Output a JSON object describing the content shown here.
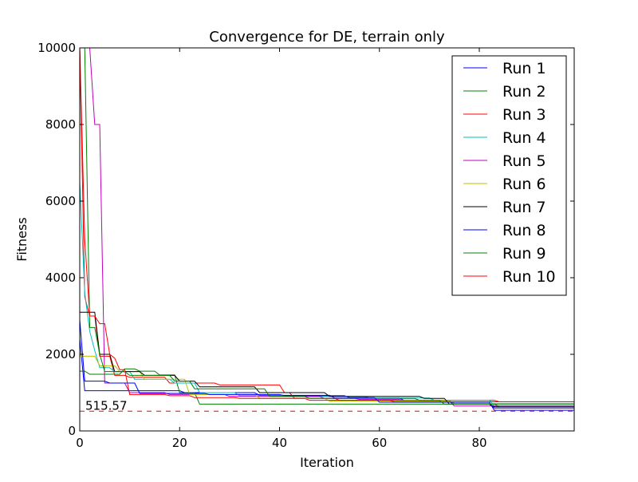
{
  "chart_data": {
    "type": "line",
    "title": "Convergence for DE, terrain only",
    "xlabel": "Iteration",
    "ylabel": "Fitness",
    "xlim": [
      0,
      99
    ],
    "ylim": [
      0,
      10000
    ],
    "xticks": [
      0,
      20,
      40,
      60,
      80
    ],
    "yticks": [
      0,
      2000,
      4000,
      6000,
      8000,
      10000
    ],
    "legend_position": "top-right",
    "reference_line": {
      "y": 515.57,
      "label": "515.57",
      "color": "#ff0000",
      "style": "dashed"
    },
    "series": [
      {
        "name": "Run 1",
        "color": "#0000ff",
        "points": [
          [
            0,
            2400
          ],
          [
            1,
            1050
          ],
          [
            20,
            1050
          ],
          [
            21,
            1000
          ],
          [
            35,
            1000
          ],
          [
            36,
            930
          ],
          [
            50,
            930
          ],
          [
            51,
            860
          ],
          [
            64,
            860
          ],
          [
            65,
            790
          ],
          [
            74,
            790
          ],
          [
            75,
            700
          ],
          [
            82,
            700
          ],
          [
            83,
            600
          ],
          [
            99,
            600
          ]
        ]
      },
      {
        "name": "Run 2",
        "color": "#008000",
        "points": [
          [
            0,
            1560
          ],
          [
            1,
            1560
          ],
          [
            2,
            1480
          ],
          [
            8,
            1480
          ],
          [
            9,
            1620
          ],
          [
            11,
            1620
          ],
          [
            12,
            1560
          ],
          [
            15,
            1560
          ],
          [
            16,
            1460
          ],
          [
            19,
            1460
          ],
          [
            20,
            1000
          ],
          [
            23,
            1000
          ],
          [
            24,
            700
          ],
          [
            99,
            700
          ]
        ]
      },
      {
        "name": "Run 3",
        "color": "#ff0000",
        "points": [
          [
            0,
            10000
          ],
          [
            1,
            3500
          ],
          [
            2,
            3000
          ],
          [
            3,
            3000
          ],
          [
            4,
            1950
          ],
          [
            6,
            1950
          ],
          [
            7,
            1450
          ],
          [
            9,
            1450
          ],
          [
            10,
            1400
          ],
          [
            17,
            1400
          ],
          [
            18,
            1250
          ],
          [
            27,
            1250
          ],
          [
            28,
            1200
          ],
          [
            40,
            1200
          ],
          [
            41,
            1000
          ],
          [
            42,
            1000
          ],
          [
            43,
            850
          ],
          [
            51,
            850
          ],
          [
            52,
            800
          ],
          [
            83,
            800
          ],
          [
            84,
            760
          ],
          [
            99,
            760
          ]
        ]
      },
      {
        "name": "Run 4",
        "color": "#00bfbf",
        "points": [
          [
            0,
            6500
          ],
          [
            1,
            3600
          ],
          [
            2,
            2600
          ],
          [
            3,
            2100
          ],
          [
            4,
            1650
          ],
          [
            6,
            1650
          ],
          [
            7,
            1550
          ],
          [
            10,
            1550
          ],
          [
            11,
            1350
          ],
          [
            18,
            1350
          ],
          [
            19,
            1250
          ],
          [
            23,
            1250
          ],
          [
            24,
            1000
          ],
          [
            31,
            1000
          ],
          [
            32,
            920
          ],
          [
            41,
            920
          ],
          [
            42,
            900
          ],
          [
            57,
            900
          ],
          [
            58,
            860
          ],
          [
            70,
            860
          ],
          [
            71,
            800
          ],
          [
            82,
            800
          ],
          [
            83,
            650
          ],
          [
            99,
            650
          ]
        ]
      },
      {
        "name": "Run 5",
        "color": "#bf00bf",
        "points": [
          [
            2,
            10000
          ],
          [
            3,
            8000
          ],
          [
            4,
            8000
          ],
          [
            5,
            1250
          ],
          [
            9,
            1250
          ],
          [
            10,
            1000
          ],
          [
            17,
            1000
          ],
          [
            18,
            950
          ],
          [
            29,
            950
          ],
          [
            30,
            900
          ],
          [
            48,
            900
          ],
          [
            49,
            850
          ],
          [
            55,
            850
          ],
          [
            56,
            820
          ],
          [
            64,
            820
          ],
          [
            65,
            780
          ],
          [
            74,
            780
          ],
          [
            75,
            650
          ],
          [
            99,
            650
          ]
        ]
      },
      {
        "name": "Run 6",
        "color": "#bfbf00",
        "points": [
          [
            0,
            1950
          ],
          [
            3,
            1950
          ],
          [
            4,
            1700
          ],
          [
            7,
            1700
          ],
          [
            8,
            1550
          ],
          [
            12,
            1550
          ],
          [
            13,
            1350
          ],
          [
            21,
            1350
          ],
          [
            22,
            950
          ],
          [
            35,
            950
          ],
          [
            36,
            850
          ],
          [
            49,
            850
          ],
          [
            50,
            780
          ],
          [
            74,
            780
          ],
          [
            75,
            720
          ],
          [
            99,
            720
          ]
        ]
      },
      {
        "name": "Run 7",
        "color": "#000000",
        "points": [
          [
            0,
            3100
          ],
          [
            3,
            3100
          ],
          [
            4,
            2000
          ],
          [
            6,
            2000
          ],
          [
            7,
            1550
          ],
          [
            12,
            1550
          ],
          [
            13,
            1450
          ],
          [
            19,
            1450
          ],
          [
            20,
            1300
          ],
          [
            23,
            1300
          ],
          [
            24,
            1150
          ],
          [
            35,
            1150
          ],
          [
            36,
            1000
          ],
          [
            49,
            1000
          ],
          [
            50,
            900
          ],
          [
            68,
            900
          ],
          [
            69,
            850
          ],
          [
            73,
            850
          ],
          [
            74,
            700
          ],
          [
            82,
            700
          ],
          [
            83,
            630
          ],
          [
            99,
            630
          ]
        ]
      },
      {
        "name": "Run 8",
        "color": "#0000ff",
        "points": [
          [
            0,
            2900
          ],
          [
            1,
            1300
          ],
          [
            5,
            1300
          ],
          [
            6,
            1250
          ],
          [
            11,
            1250
          ],
          [
            12,
            980
          ],
          [
            25,
            980
          ],
          [
            26,
            950
          ],
          [
            40,
            950
          ],
          [
            41,
            920
          ],
          [
            53,
            920
          ],
          [
            54,
            870
          ],
          [
            59,
            870
          ],
          [
            60,
            750
          ],
          [
            82,
            750
          ],
          [
            83,
            540
          ],
          [
            99,
            540
          ]
        ]
      },
      {
        "name": "Run 9",
        "color": "#008000",
        "points": [
          [
            1,
            10000
          ],
          [
            2,
            2700
          ],
          [
            3,
            2700
          ],
          [
            4,
            2000
          ],
          [
            5,
            1550
          ],
          [
            9,
            1550
          ],
          [
            10,
            1450
          ],
          [
            18,
            1450
          ],
          [
            19,
            1300
          ],
          [
            22,
            1300
          ],
          [
            23,
            1100
          ],
          [
            37,
            1100
          ],
          [
            38,
            900
          ],
          [
            45,
            900
          ],
          [
            46,
            850
          ],
          [
            67,
            850
          ],
          [
            68,
            800
          ],
          [
            72,
            800
          ],
          [
            73,
            700
          ],
          [
            83,
            700
          ],
          [
            84,
            640
          ],
          [
            99,
            640
          ]
        ]
      },
      {
        "name": "Run 10",
        "color": "#ff0000",
        "points": [
          [
            0,
            10000
          ],
          [
            1,
            5000
          ],
          [
            2,
            3000
          ],
          [
            3,
            3000
          ],
          [
            4,
            2800
          ],
          [
            5,
            2800
          ],
          [
            6,
            2000
          ],
          [
            7,
            1900
          ],
          [
            8,
            1600
          ],
          [
            9,
            1600
          ],
          [
            10,
            950
          ],
          [
            17,
            950
          ],
          [
            18,
            920
          ],
          [
            22,
            920
          ],
          [
            23,
            870
          ],
          [
            31,
            870
          ],
          [
            32,
            850
          ],
          [
            45,
            850
          ],
          [
            46,
            800
          ],
          [
            62,
            800
          ],
          [
            63,
            760
          ],
          [
            99,
            760
          ]
        ]
      }
    ]
  }
}
